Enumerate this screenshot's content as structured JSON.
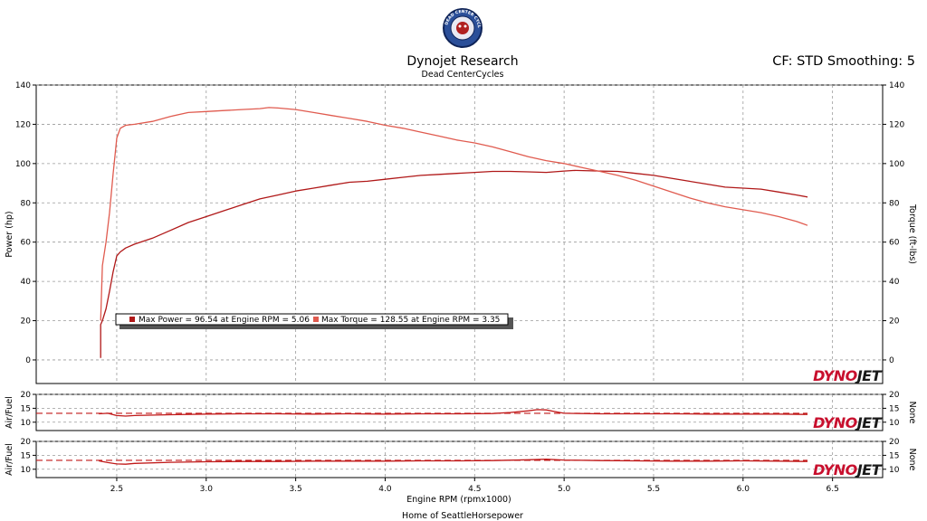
{
  "header": {
    "logo_text": "DEAD CENTER CYCLES",
    "title": "Dynojet Research",
    "subtitle": "Dead CenterCycles",
    "cf_info": "CF: STD Smoothing: 5"
  },
  "footer": {
    "text": "Home of SeattleHorsepower"
  },
  "brand": {
    "dyno": "DYNO",
    "jet": "JET"
  },
  "colors": {
    "power": "#b01818",
    "torque": "#e05b4f",
    "afr": "#c01818",
    "afr_ref": "#c01818",
    "grid": "#9a9a9a",
    "brand_red": "#c8102e",
    "brand_dark": "#1a1a1a"
  },
  "legend": {
    "power": "Max Power = 96.54 at Engine RPM = 5.06",
    "torque": "Max Torque = 128.55 at Engine RPM = 3.35"
  },
  "chart_data": [
    {
      "type": "line",
      "title": "",
      "xlabel": "Engine RPM (rpmx1000)",
      "ylabel": "Power (hp)",
      "y2label": "Torque (ft-lbs)",
      "xlim": [
        2.05,
        6.78
      ],
      "ylim": [
        -12,
        140
      ],
      "xticks": [
        "2.5",
        "3.0",
        "3.5",
        "4.0",
        "4.5",
        "5.0",
        "5.5",
        "6.0",
        "6.5"
      ],
      "yticks": [
        "0",
        "20",
        "40",
        "60",
        "80",
        "100",
        "120",
        "140"
      ],
      "grid": true,
      "series": [
        {
          "name": "Power",
          "x": [
            2.41,
            2.41,
            2.42,
            2.44,
            2.46,
            2.48,
            2.5,
            2.52,
            2.55,
            2.6,
            2.7,
            2.8,
            2.9,
            3.0,
            3.1,
            3.2,
            3.3,
            3.4,
            3.5,
            3.6,
            3.7,
            3.8,
            3.9,
            4.0,
            4.1,
            4.2,
            4.3,
            4.4,
            4.5,
            4.6,
            4.7,
            4.8,
            4.9,
            5.0,
            5.06,
            5.2,
            5.3,
            5.4,
            5.5,
            5.6,
            5.7,
            5.8,
            5.9,
            6.0,
            6.1,
            6.2,
            6.3,
            6.36
          ],
          "y": [
            1,
            18,
            20,
            26,
            35,
            45,
            53,
            55,
            57,
            59,
            62,
            66,
            70,
            73,
            76,
            79,
            82,
            84,
            86,
            87.5,
            89,
            90.5,
            91,
            92,
            93,
            94,
            94.5,
            95,
            95.5,
            96,
            96,
            95.8,
            95.5,
            96.2,
            96.54,
            96.2,
            96,
            95,
            94,
            92.5,
            91,
            89.5,
            88,
            87.5,
            87,
            85.5,
            84,
            83
          ]
        },
        {
          "name": "Torque",
          "x": [
            2.41,
            2.42,
            2.44,
            2.46,
            2.48,
            2.5,
            2.52,
            2.55,
            2.6,
            2.7,
            2.8,
            2.9,
            3.0,
            3.1,
            3.2,
            3.3,
            3.35,
            3.4,
            3.5,
            3.6,
            3.7,
            3.8,
            3.9,
            4.0,
            4.1,
            4.2,
            4.3,
            4.4,
            4.5,
            4.6,
            4.7,
            4.8,
            4.9,
            5.0,
            5.1,
            5.2,
            5.3,
            5.4,
            5.5,
            5.6,
            5.7,
            5.8,
            5.9,
            6.0,
            6.1,
            6.2,
            6.3,
            6.36
          ],
          "y": [
            20,
            48,
            60,
            75,
            95,
            113,
            118,
            119.5,
            120,
            121.5,
            124,
            126,
            126.5,
            127,
            127.5,
            128,
            128.55,
            128.3,
            127.5,
            126,
            124.5,
            123,
            121.5,
            119.5,
            118,
            116,
            114,
            112,
            110.5,
            108.5,
            106,
            103.5,
            101.5,
            100,
            98,
            96,
            94,
            91.5,
            88.5,
            85.5,
            82.5,
            80,
            78,
            76.5,
            75,
            73,
            70.5,
            68.5
          ]
        }
      ]
    },
    {
      "type": "line",
      "title": "",
      "ylabel": "Air/Fuel",
      "y2label": "None",
      "xlim": [
        2.05,
        6.78
      ],
      "ylim": [
        7,
        20
      ],
      "yticks": [
        "10",
        "15",
        "20"
      ],
      "grid": true,
      "series": [
        {
          "name": "",
          "x": [
            2.4,
            2.45,
            2.5,
            2.55,
            2.6,
            2.8,
            3.0,
            3.2,
            3.4,
            3.6,
            3.8,
            4.0,
            4.2,
            4.4,
            4.6,
            4.7,
            4.8,
            4.85,
            4.9,
            4.95,
            5.0,
            5.2,
            5.4,
            5.6,
            5.8,
            6.0,
            6.2,
            6.36
          ],
          "y": [
            13,
            13.2,
            12.4,
            12.2,
            12.4,
            12.7,
            12.9,
            13,
            13,
            12.9,
            13,
            12.9,
            13,
            13,
            13.1,
            13.5,
            14.1,
            14.5,
            14.4,
            13.8,
            13.2,
            13,
            13,
            13,
            12.9,
            12.9,
            12.9,
            12.8
          ]
        },
        {
          "name": "",
          "x": [
            2.05,
            6.36
          ],
          "y": [
            13.2,
            13.2
          ],
          "style": "dashed"
        }
      ]
    },
    {
      "type": "line",
      "title": "",
      "ylabel": "Air/Fuel",
      "y2label": "None",
      "xlim": [
        2.05,
        6.78
      ],
      "ylim": [
        7,
        20
      ],
      "yticks": [
        "10",
        "15",
        "20"
      ],
      "grid": true,
      "series": [
        {
          "name": "",
          "x": [
            2.4,
            2.45,
            2.5,
            2.55,
            2.6,
            2.8,
            3.0,
            3.2,
            3.4,
            3.6,
            3.8,
            4.0,
            4.2,
            4.4,
            4.6,
            4.8,
            4.9,
            5.0,
            5.2,
            5.4,
            5.6,
            5.8,
            6.0,
            6.2,
            6.36
          ],
          "y": [
            13,
            12.4,
            11.9,
            11.8,
            12.1,
            12.5,
            12.7,
            12.8,
            12.8,
            12.9,
            12.9,
            12.9,
            13,
            13,
            13.1,
            13.4,
            13.6,
            13.3,
            13.1,
            13,
            12.9,
            12.9,
            13,
            12.9,
            12.8
          ]
        },
        {
          "name": "",
          "x": [
            2.05,
            6.36
          ],
          "y": [
            13.2,
            13.2
          ],
          "style": "dashed"
        }
      ]
    }
  ]
}
